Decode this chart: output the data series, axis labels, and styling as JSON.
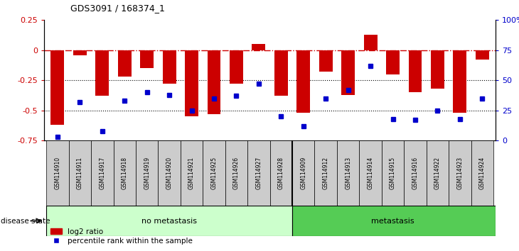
{
  "title": "GDS3091 / 168374_1",
  "samples": [
    "GSM114910",
    "GSM114911",
    "GSM114917",
    "GSM114918",
    "GSM114919",
    "GSM114920",
    "GSM114921",
    "GSM114925",
    "GSM114926",
    "GSM114927",
    "GSM114928",
    "GSM114909",
    "GSM114912",
    "GSM114913",
    "GSM114914",
    "GSM114915",
    "GSM114916",
    "GSM114922",
    "GSM114923",
    "GSM114924"
  ],
  "log2_ratio": [
    -0.62,
    -0.04,
    -0.38,
    -0.22,
    -0.15,
    -0.28,
    -0.55,
    -0.53,
    -0.28,
    0.05,
    -0.38,
    -0.52,
    -0.18,
    -0.37,
    0.13,
    -0.2,
    -0.35,
    -0.32,
    -0.52,
    -0.08
  ],
  "percentile_rank": [
    3,
    32,
    8,
    33,
    40,
    38,
    25,
    35,
    37,
    47,
    20,
    12,
    35,
    42,
    62,
    18,
    17,
    25,
    18,
    35
  ],
  "group_boundary": 11,
  "group1_label": "no metastasis",
  "group2_label": "metastasis",
  "group1_color": "#ccffcc",
  "group2_color": "#55cc55",
  "bar_color": "#cc0000",
  "dot_color": "#0000cc",
  "ylim_left": [
    -0.75,
    0.25
  ],
  "ylim_right": [
    0,
    100
  ],
  "yticks_left": [
    -0.75,
    -0.5,
    -0.25,
    0,
    0.25
  ],
  "ytick_labels_left": [
    "-0.75",
    "-0.5",
    "-0.25",
    "0",
    "0.25"
  ],
  "yticks_right": [
    0,
    25,
    50,
    75,
    100
  ],
  "ytick_labels_right": [
    "0",
    "25",
    "50",
    "75",
    "100%"
  ],
  "hline_color": "#cc0000",
  "dotted_line_color": "#000000",
  "background_color": "#ffffff",
  "xlabel_gray": "#c0c0c0",
  "xlabel_box_color": "#cccccc"
}
